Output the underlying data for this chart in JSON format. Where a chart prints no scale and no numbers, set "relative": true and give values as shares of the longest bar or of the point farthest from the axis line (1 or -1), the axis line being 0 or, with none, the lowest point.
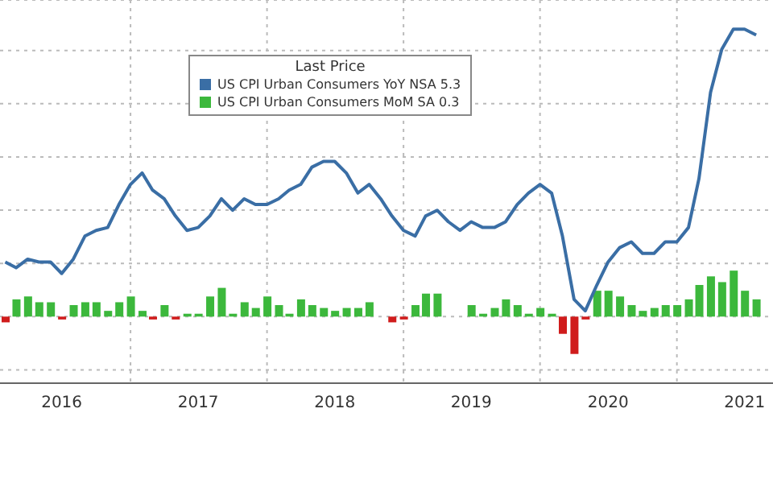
{
  "chart_data": {
    "type": "line",
    "relative": true,
    "legend_title": "Last Price",
    "legend": "top",
    "grid": true,
    "marker": "none",
    "x": [
      "2016-02",
      "2016-03",
      "2016-04",
      "2016-05",
      "2016-06",
      "2016-07",
      "2016-08",
      "2016-09",
      "2016-10",
      "2016-11",
      "2016-12",
      "2017-01",
      "2017-02",
      "2017-03",
      "2017-04",
      "2017-05",
      "2017-06",
      "2017-07",
      "2017-08",
      "2017-09",
      "2017-10",
      "2017-11",
      "2017-12",
      "2018-01",
      "2018-02",
      "2018-03",
      "2018-04",
      "2018-05",
      "2018-06",
      "2018-07",
      "2018-08",
      "2018-09",
      "2018-10",
      "2018-11",
      "2018-12",
      "2019-01",
      "2019-02",
      "2019-03",
      "2019-04",
      "2019-05",
      "2019-06",
      "2019-07",
      "2019-08",
      "2019-09",
      "2019-10",
      "2019-11",
      "2019-12",
      "2020-01",
      "2020-02",
      "2020-03",
      "2020-04",
      "2020-05",
      "2020-06",
      "2020-07",
      "2020-08",
      "2020-09",
      "2020-10",
      "2020-11",
      "2020-12",
      "2021-01",
      "2021-02",
      "2021-03",
      "2021-04",
      "2021-05",
      "2021-06",
      "2021-07",
      "2021-08"
    ],
    "xlim": [
      "2016-01-18",
      "2021-09-15"
    ],
    "xticks": [
      {
        "value": "2016-07-01",
        "label": "2016"
      },
      {
        "value": "2017-01-01",
        "label": null
      },
      {
        "value": "2017-07-01",
        "label": "2017"
      },
      {
        "value": "2018-01-01",
        "label": null
      },
      {
        "value": "2018-07-01",
        "label": "2018"
      },
      {
        "value": "2019-01-01",
        "label": null
      },
      {
        "value": "2019-07-01",
        "label": "2019"
      },
      {
        "value": "2020-01-01",
        "label": null
      },
      {
        "value": "2020-07-01",
        "label": "2020"
      },
      {
        "value": "2021-01-01",
        "label": null
      },
      {
        "value": "2021-07-01",
        "label": "2021"
      }
    ],
    "series": [
      {
        "name": "US CPI Urban Consumers YoY NSA 5.3",
        "color": "#3a6ea5",
        "values": [
          0.19,
          0.17,
          0.2,
          0.19,
          0.19,
          0.15,
          0.2,
          0.28,
          0.3,
          0.31,
          0.39,
          0.46,
          0.5,
          0.44,
          0.41,
          0.35,
          0.3,
          0.31,
          0.35,
          0.41,
          0.37,
          0.41,
          0.39,
          0.39,
          0.41,
          0.44,
          0.46,
          0.52,
          0.54,
          0.54,
          0.5,
          0.43,
          0.46,
          0.41,
          0.35,
          0.3,
          0.28,
          0.35,
          0.37,
          0.33,
          0.3,
          0.33,
          0.31,
          0.31,
          0.33,
          0.39,
          0.43,
          0.46,
          0.43,
          0.28,
          0.06,
          0.02,
          0.11,
          0.19,
          0.24,
          0.26,
          0.22,
          0.22,
          0.26,
          0.26,
          0.31,
          0.48,
          0.78,
          0.93,
          1,
          1,
          0.98
        ]
      },
      {
        "name": "US CPI Urban Consumers MoM SA 0.3",
        "type": "bar",
        "color": "#3cb83c",
        "values": [
          -0.02,
          0.06,
          0.07,
          0.05,
          0.05,
          -0.01,
          0.04,
          0.05,
          0.05,
          0.02,
          0.05,
          0.07,
          0.02,
          -0.01,
          0.04,
          -0.01,
          0.01,
          0.01,
          0.07,
          0.1,
          0.01,
          0.05,
          0.03,
          0.07,
          0.04,
          0.01,
          0.06,
          0.04,
          0.03,
          0.02,
          0.03,
          0.03,
          0.05,
          0,
          -0.02,
          -0.01,
          0.04,
          0.08,
          0.08,
          0,
          0,
          0.04,
          0.01,
          0.03,
          0.06,
          0.04,
          0.01,
          0.03,
          0.01,
          -0.06,
          -0.13,
          -0.01,
          0.09,
          0.09,
          0.07,
          0.04,
          0.02,
          0.03,
          0.04,
          0.04,
          0.06,
          0.11,
          0.14,
          0.12,
          0.16,
          0.09,
          0.06
        ],
        "colors": [
          "#d01c1c",
          "#3cb83c",
          "#3cb83c",
          "#3cb83c",
          "#3cb83c",
          "#d01c1c",
          "#3cb83c",
          "#3cb83c",
          "#3cb83c",
          "#3cb83c",
          "#3cb83c",
          "#3cb83c",
          "#3cb83c",
          "#d01c1c",
          "#3cb83c",
          "#d01c1c",
          "#3cb83c",
          "#3cb83c",
          "#3cb83c",
          "#3cb83c",
          "#3cb83c",
          "#3cb83c",
          "#3cb83c",
          "#3cb83c",
          "#3cb83c",
          "#3cb83c",
          "#3cb83c",
          "#3cb83c",
          "#3cb83c",
          "#3cb83c",
          "#3cb83c",
          "#3cb83c",
          "#3cb83c",
          "#3cb83c",
          "#d01c1c",
          "#d01c1c",
          "#3cb83c",
          "#3cb83c",
          "#3cb83c",
          "#3cb83c",
          "#3cb83c",
          "#3cb83c",
          "#3cb83c",
          "#3cb83c",
          "#3cb83c",
          "#3cb83c",
          "#3cb83c",
          "#3cb83c",
          "#3cb83c",
          "#d01c1c",
          "#d01c1c",
          "#d01c1c",
          "#3cb83c",
          "#3cb83c",
          "#3cb83c",
          "#3cb83c",
          "#3cb83c",
          "#3cb83c",
          "#3cb83c",
          "#3cb83c",
          "#3cb83c",
          "#3cb83c",
          "#3cb83c",
          "#3cb83c",
          "#3cb83c",
          "#3cb83c",
          "#3cb83c"
        ]
      }
    ]
  }
}
